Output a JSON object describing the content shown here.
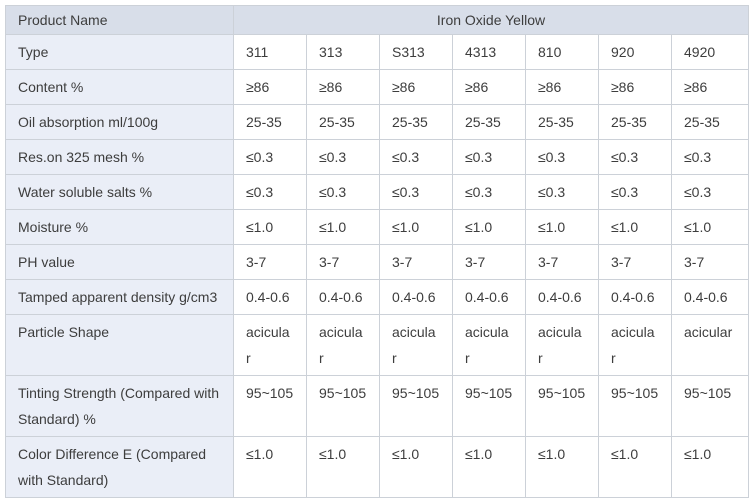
{
  "colors": {
    "header_bg": "#d8dee9",
    "label_bg": "#eaeef7",
    "border": "#ccd1d8",
    "text": "#3d3d3d"
  },
  "table": {
    "header": {
      "product_name_label": "Product Name",
      "product_title": "Iron Oxide Yellow"
    },
    "rows": [
      {
        "label": "Type",
        "values": [
          "311",
          "313",
          "S313",
          "4313",
          "810",
          "920",
          "4920"
        ]
      },
      {
        "label": "Content %",
        "values": [
          "≥86",
          "≥86",
          "≥86",
          "≥86",
          "≥86",
          "≥86",
          "≥86"
        ]
      },
      {
        "label": "Oil absorption ml/100g",
        "values": [
          "25-35",
          "25-35",
          "25-35",
          "25-35",
          "25-35",
          "25-35",
          "25-35"
        ]
      },
      {
        "label": "Res.on 325 mesh %",
        "values": [
          "≤0.3",
          "≤0.3",
          "≤0.3",
          "≤0.3",
          "≤0.3",
          "≤0.3",
          "≤0.3"
        ]
      },
      {
        "label": "Water soluble salts %",
        "values": [
          "≤0.3",
          "≤0.3",
          "≤0.3",
          "≤0.3",
          "≤0.3",
          "≤0.3",
          "≤0.3"
        ]
      },
      {
        "label": "Moisture %",
        "values": [
          "≤1.0",
          "≤1.0",
          "≤1.0",
          "≤1.0",
          "≤1.0",
          "≤1.0",
          "≤1.0"
        ]
      },
      {
        "label": "PH value",
        "values": [
          "3-7",
          "3-7",
          "3-7",
          "3-7",
          "3-7",
          "3-7",
          "3-7"
        ]
      },
      {
        "label": "Tamped apparent density g/cm3",
        "values": [
          "0.4-0.6",
          "0.4-0.6",
          "0.4-0.6",
          "0.4-0.6",
          "0.4-0.6",
          "0.4-0.6",
          "0.4-0.6"
        ]
      },
      {
        "label": "Particle Shape",
        "values": [
          "acicular",
          "acicular",
          "acicular",
          "acicular",
          "acicular",
          "acicular",
          "acicular"
        ]
      },
      {
        "label": "Tinting Strength (Compared with Standard) %",
        "values": [
          "95~105",
          "95~105",
          "95~105",
          "95~105",
          "95~105",
          "95~105",
          "95~105"
        ]
      },
      {
        "label": "Color Difference E (Compared with Standard)",
        "values": [
          "≤1.0",
          "≤1.0",
          "≤1.0",
          "≤1.0",
          "≤1.0",
          "≤1.0",
          "≤1.0"
        ]
      }
    ]
  }
}
